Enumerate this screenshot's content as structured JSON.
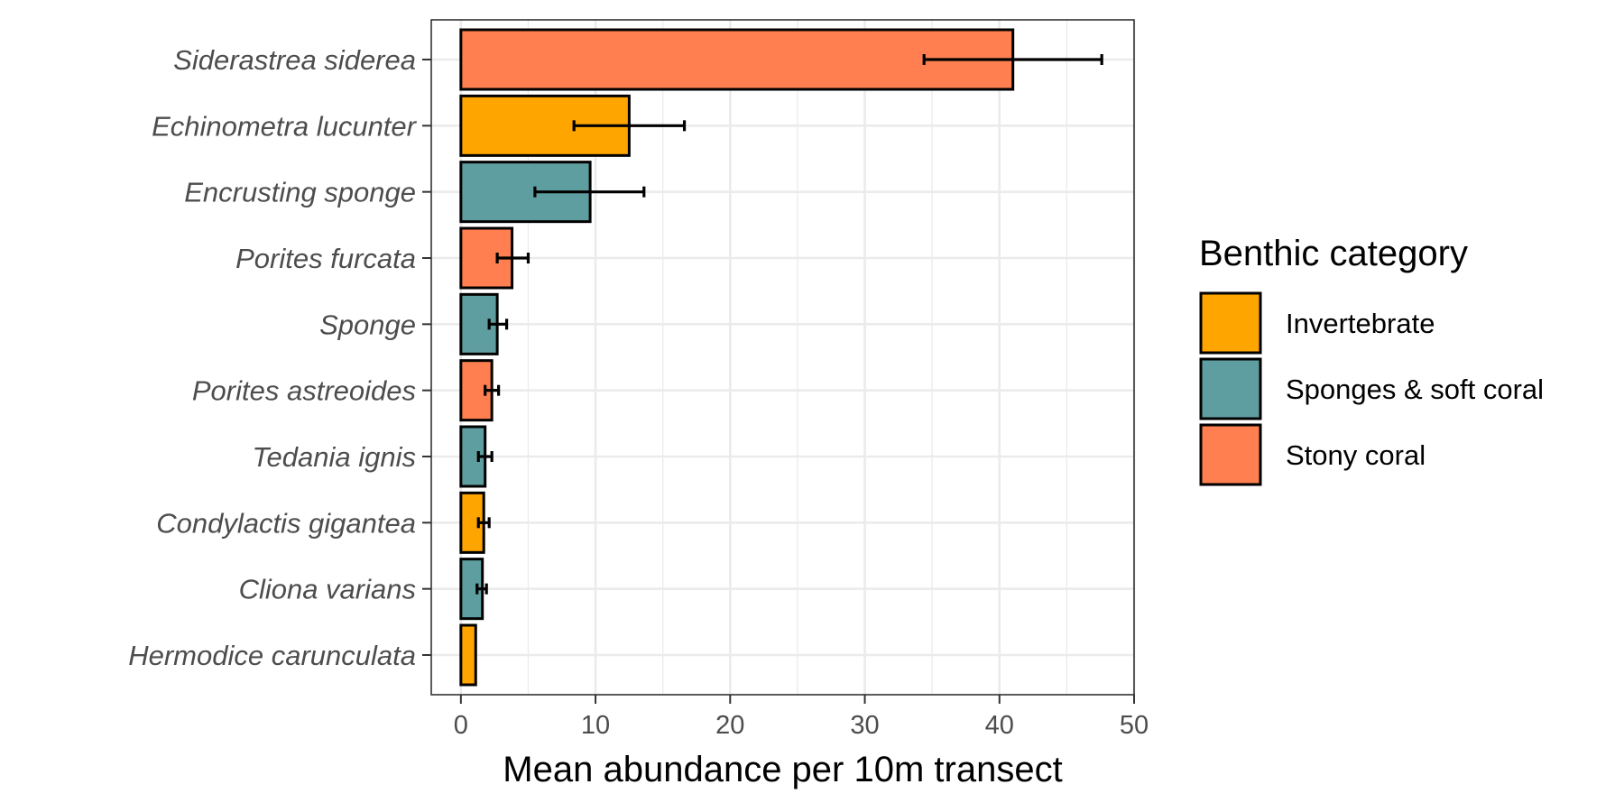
{
  "chart_data": {
    "type": "bar",
    "orientation": "horizontal",
    "xlabel": "Mean abundance per 10m transect",
    "ylabel": "",
    "xlim": [
      -2.2,
      50
    ],
    "x_ticks": [
      0,
      10,
      20,
      30,
      40,
      50
    ],
    "grid": true,
    "legend_position": "right",
    "legend": {
      "title": "Benthic category",
      "entries": [
        {
          "label": "Invertebrate",
          "color": "#FFA500"
        },
        {
          "label": "Sponges & soft coral",
          "color": "#5F9EA0"
        },
        {
          "label": "Stony coral",
          "color": "#FF7F50"
        }
      ]
    },
    "categories": [
      "Siderastrea siderea",
      "Echinometra lucunter",
      "Encrusting sponge",
      "Porites furcata",
      "Sponge",
      "Porites astreoides",
      "Tedania ignis",
      "Condylactis gigantea",
      "Cliona varians",
      "Hermodice carunculata"
    ],
    "values": [
      41.0,
      12.5,
      9.6,
      3.8,
      2.7,
      2.3,
      1.8,
      1.7,
      1.6,
      1.1
    ],
    "error_low": [
      34.4,
      8.4,
      5.5,
      2.7,
      2.1,
      1.8,
      1.3,
      1.3,
      1.2,
      null
    ],
    "error_high": [
      47.6,
      16.6,
      13.6,
      5.0,
      3.4,
      2.8,
      2.3,
      2.1,
      1.9,
      null
    ],
    "groups": [
      "Stony coral",
      "Invertebrate",
      "Sponges & soft coral",
      "Stony coral",
      "Sponges & soft coral",
      "Stony coral",
      "Sponges & soft coral",
      "Invertebrate",
      "Sponges & soft coral",
      "Invertebrate"
    ]
  }
}
